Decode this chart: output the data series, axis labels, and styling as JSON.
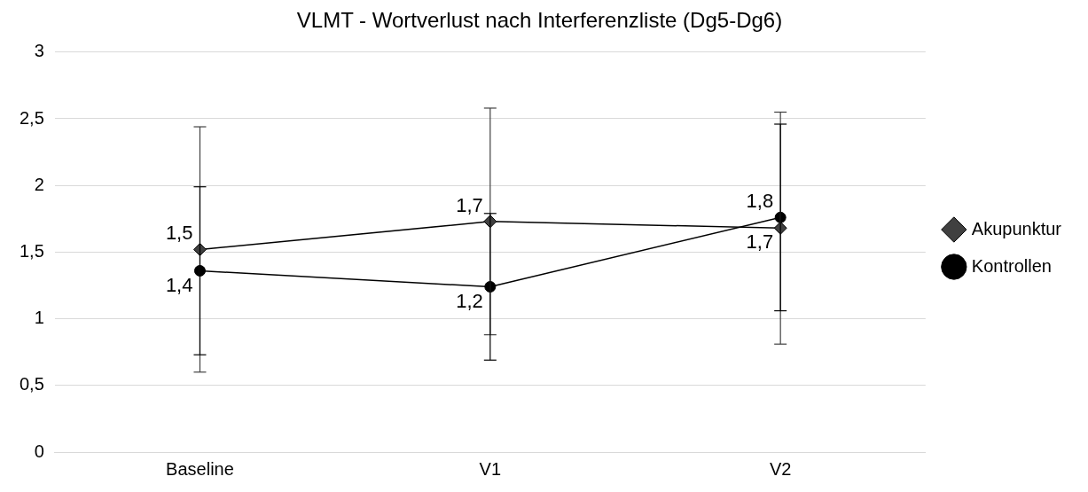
{
  "chart_data": {
    "type": "line",
    "title": "VLMT - Wortverlust nach Interferenzliste (Dg5-Dg6)",
    "categories": [
      "Baseline",
      "V1",
      "V2"
    ],
    "series": [
      {
        "name": "Akupunktur",
        "color": "#404040",
        "marker": "diamond",
        "values": [
          1.52,
          1.73,
          1.68
        ],
        "errors": [
          0.92,
          0.85,
          0.87
        ],
        "value_labels": [
          "1,5",
          "1,7",
          "1,7"
        ]
      },
      {
        "name": "Kontrollen",
        "color": "#000000",
        "marker": "circle",
        "values": [
          1.36,
          1.24,
          1.76
        ],
        "errors": [
          0.63,
          0.55,
          0.7
        ],
        "value_labels": [
          "1,4",
          "1,2",
          "1,8"
        ]
      }
    ],
    "ylim": [
      0,
      3
    ],
    "yticks": [
      0,
      {
        "value": 0.5,
        "label": "0,5"
      },
      1,
      {
        "value": 1.5,
        "label": "1,5"
      },
      2,
      {
        "value": 2.5,
        "label": "2,5"
      },
      3
    ],
    "grid": "y",
    "legend": "right",
    "line_style": "solid"
  }
}
